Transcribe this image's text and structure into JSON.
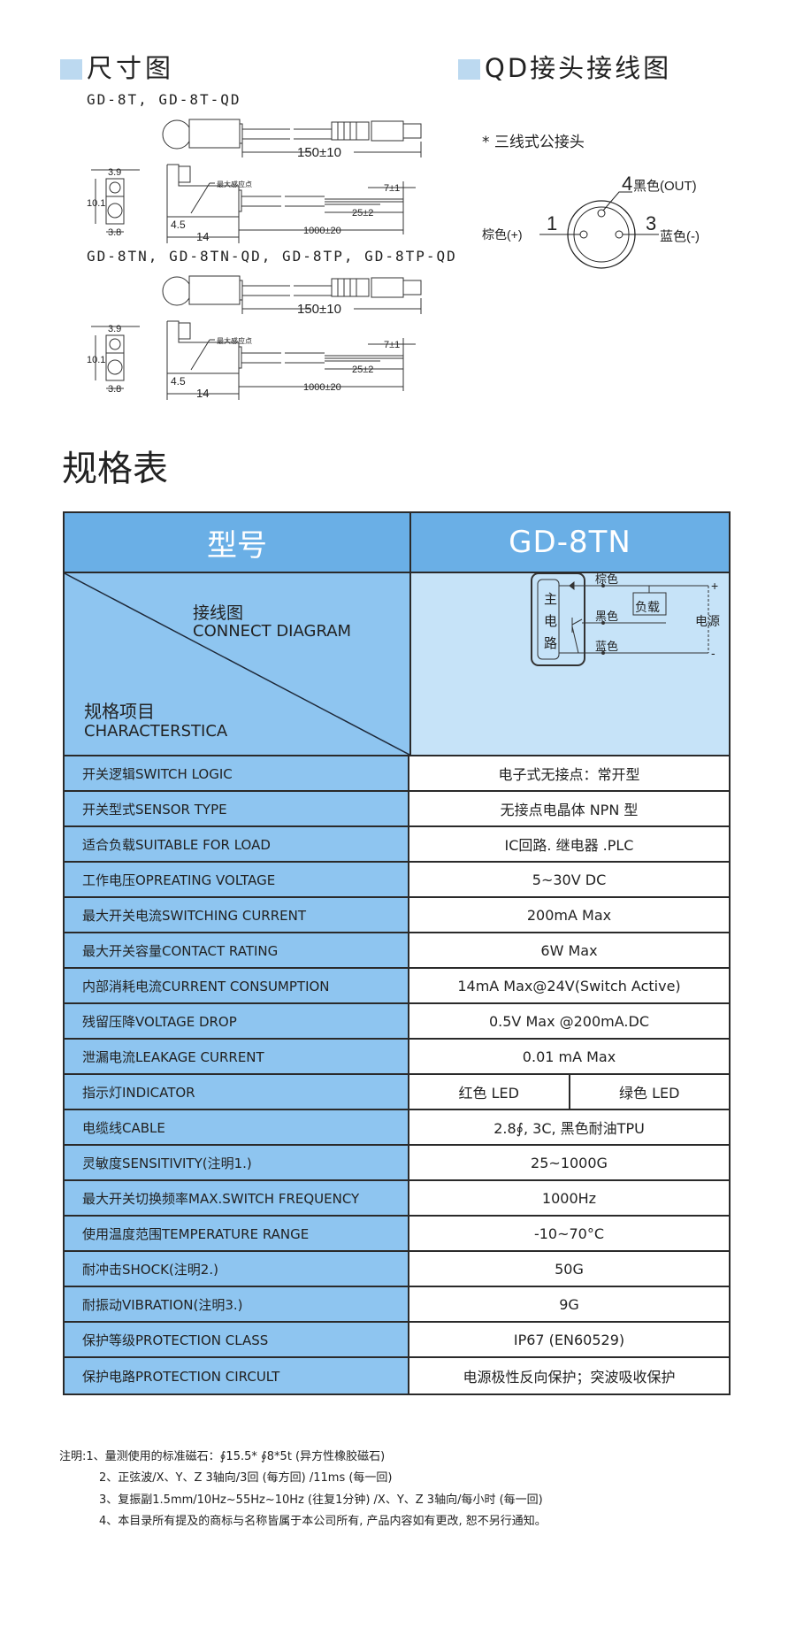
{
  "dimension_section": {
    "title": "尺寸图",
    "models_1": "GD-8T, GD-8T-QD",
    "models_2": "GD-8TN, GD-8TN-QD, GD-8TP, GD-8TP-QD",
    "dims": {
      "cable_qd": "150±10",
      "width_top": "3.9",
      "height": "10.1",
      "width_bottom": "3.8",
      "sensing_point": "最大感应点",
      "offset": "4.5",
      "length": "14",
      "cable": "1000±20",
      "strip": "25±2",
      "tip": "7±1"
    }
  },
  "qd_section": {
    "title": "QD接头接线图",
    "subtitle": "* 三线式公接头",
    "pin4": "4",
    "pin4_label": "黑色(OUT)",
    "pin1": "1",
    "pin1_label": "棕色(+)",
    "pin3": "3",
    "pin3_label": "蓝色(-)"
  },
  "spec_heading": "规格表",
  "table": {
    "header_left": "型号",
    "header_right": "GD-8TN",
    "diag_top_cn": "接线图",
    "diag_top_en": "CONNECT DIAGRAM",
    "diag_bottom_cn": "规格项目",
    "diag_bottom_en": "CHARACTERSTICA",
    "circuit": {
      "main": [
        "主",
        "电",
        "路"
      ],
      "brown": "棕色",
      "black": "黑色",
      "blue": "蓝色",
      "load": "负载",
      "power": "电源",
      "plus": "+",
      "minus": "-"
    },
    "rows": [
      {
        "label": "开关逻辑SWITCH LOGIC",
        "value": "电子式无接点：常开型"
      },
      {
        "label": "开关型式SENSOR TYPE",
        "value": "无接点电晶体 NPN 型"
      },
      {
        "label": "适合负载SUITABLE FOR LOAD",
        "value": "IC回路. 继电器 .PLC"
      },
      {
        "label": "工作电压OPREATING VOLTAGE",
        "value": "5~30V DC"
      },
      {
        "label": "最大开关电流SWITCHING CURRENT",
        "value": "200mA Max"
      },
      {
        "label": "最大开关容量CONTACT RATING",
        "value": "6W Max"
      },
      {
        "label": "内部消耗电流CURRENT CONSUMPTION",
        "value": "14mA Max@24V(Switch Active)"
      },
      {
        "label": "残留压降VOLTAGE DROP",
        "value": "0.5V Max @200mA.DC"
      },
      {
        "label": "泄漏电流LEAKAGE CURRENT",
        "value": "0.01 mA Max"
      },
      {
        "label": "指示灯INDICATOR",
        "value": "红色 LED",
        "value2": "绿色 LED"
      },
      {
        "label": "电缆线CABLE",
        "value": "2.8∮, 3C, 黑色耐油TPU"
      },
      {
        "label": "灵敏度SENSITIVITY(注明1.)",
        "value": "25~1000G"
      },
      {
        "label": "最大开关切换频率MAX.SWITCH FREQUENCY",
        "value": "1000Hz"
      },
      {
        "label": "使用温度范围TEMPERATURE RANGE",
        "value": "-10~70°C"
      },
      {
        "label": "耐冲击SHOCK(注明2.)",
        "value": "50G"
      },
      {
        "label": "耐振动VIBRATION(注明3.)",
        "value": "9G"
      },
      {
        "label": "保护等级PROTECTION CLASS",
        "value": "IP67 (EN60529)"
      },
      {
        "label": "保护电路PROTECTION CIRCULT",
        "value": "电源极性反向保护；突波吸收保护"
      }
    ]
  },
  "notes": [
    "注明:1、量测使用的标准磁石：∮15.5* ∮8*5t (异方性橡胶磁石)",
    "2、正弦波/X、Y、Z 3轴向/3回 (每方回) /11ms (每一回)",
    "3、复振副1.5mm/10Hz~55Hz~10Hz (往复1分钟) /X、Y、Z 3轴向/每小时 (每一回)",
    "4、本目录所有提及的商标与名称皆属于本公司所有, 产品内容如有更改, 恕不另行通知。"
  ],
  "colors": {
    "header_blue": "#6aafe6",
    "label_blue": "#8ec5f0",
    "diagram_bg": "#c6e3f8",
    "title_square": "#bcd9f0"
  }
}
